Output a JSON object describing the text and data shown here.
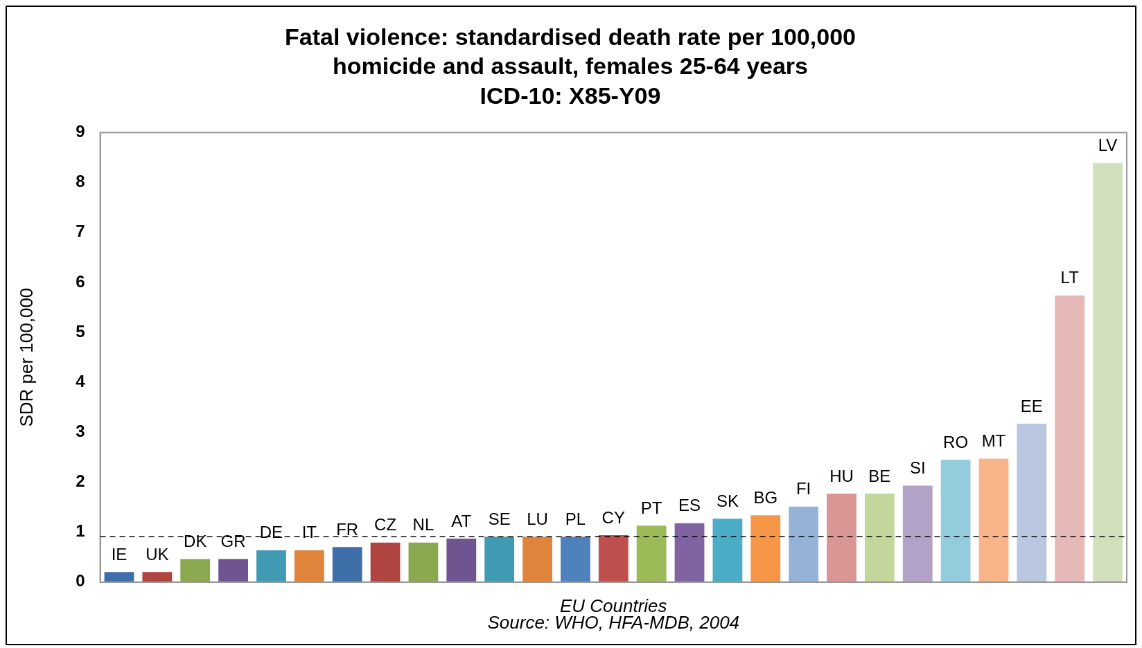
{
  "chart_data": {
    "type": "bar",
    "title": "Fatal violence: standardised death rate per 100,000\nhomicide and assault, females 25-64 years\nICD-10: X85-Y09",
    "xlabel": "EU Countries",
    "ylabel": "SDR per 100,000",
    "annotations": [
      "Source: WHO, HFA-MDB, 2004"
    ],
    "categories": [
      "IE",
      "UK",
      "DK",
      "GR",
      "DE",
      "IT",
      "FR",
      "CZ",
      "NL",
      "AT",
      "SE",
      "LU",
      "PL",
      "CY",
      "PT",
      "ES",
      "SK",
      "BG",
      "FI",
      "HU",
      "BE",
      "SI",
      "RO",
      "MT",
      "EE",
      "LT",
      "LV"
    ],
    "values": [
      0.2,
      0.2,
      0.46,
      0.46,
      0.64,
      0.64,
      0.7,
      0.79,
      0.79,
      0.87,
      0.91,
      0.91,
      0.91,
      0.94,
      1.13,
      1.18,
      1.27,
      1.34,
      1.51,
      1.77,
      1.77,
      1.93,
      2.45,
      2.47,
      3.17,
      5.74,
      8.39
    ],
    "colors": [
      "#3f6fa8",
      "#b04440",
      "#8aa84e",
      "#6e5590",
      "#3f9ab2",
      "#e0843c",
      "#3f6fa8",
      "#b04440",
      "#8aa84e",
      "#6e5590",
      "#3f9ab2",
      "#e0843c",
      "#4f81bd",
      "#c0504d",
      "#9bbb59",
      "#8064a2",
      "#4bacc6",
      "#f79646",
      "#95b3d7",
      "#d99694",
      "#c3d69b",
      "#b2a2c7",
      "#93cddd",
      "#fab48a",
      "#b9c7e0",
      "#e6b9b8",
      "#d2dfbd"
    ],
    "ylim": [
      0,
      9
    ],
    "yticks": [
      0,
      1,
      2,
      3,
      4,
      5,
      6,
      7,
      8,
      9
    ],
    "grid": false,
    "legend": false,
    "ref_lines": [
      {
        "axis": "y",
        "value": 0.91,
        "color": "#000000",
        "line_style": "dashed"
      }
    ]
  }
}
